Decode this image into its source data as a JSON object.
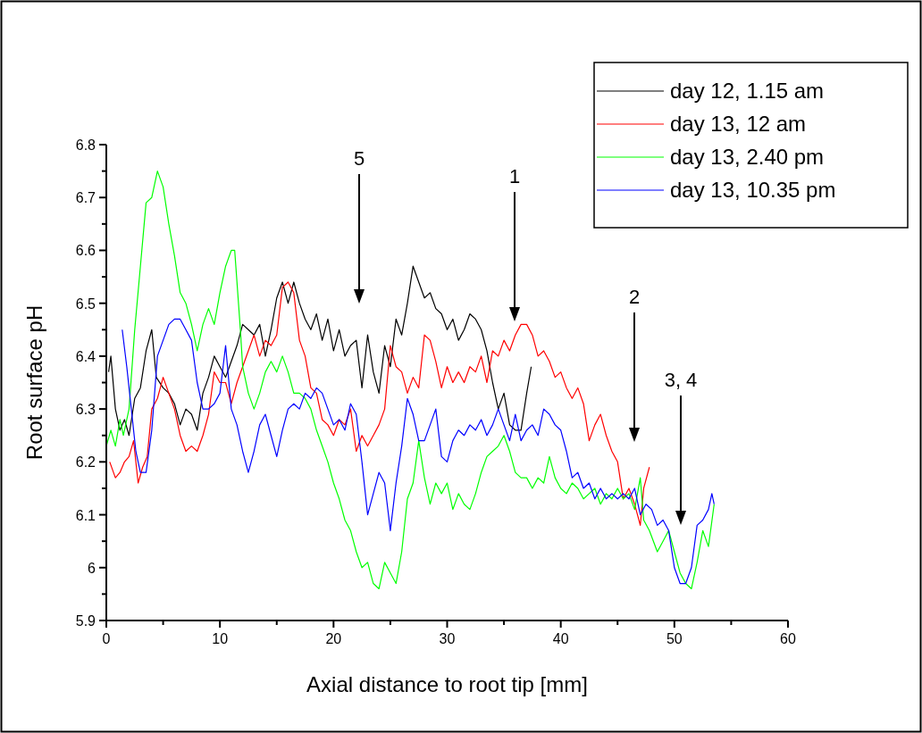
{
  "chart_data": {
    "type": "line",
    "xlabel": "Axial distance to root tip [mm]",
    "ylabel": "Root surface pH",
    "xlim": [
      0,
      60
    ],
    "ylim": [
      5.9,
      6.8
    ],
    "xticks": [
      0,
      10,
      20,
      30,
      40,
      50,
      60
    ],
    "yticks": [
      5.9,
      6.0,
      6.1,
      6.2,
      6.3,
      6.4,
      6.5,
      6.6,
      6.7,
      6.8
    ],
    "legend": "top right",
    "grid": false,
    "marker": "none",
    "line_style": "solid",
    "annotations": [
      "5",
      "1",
      "2",
      "3, 4"
    ],
    "series": [
      {
        "name": "day 12, 1.15 am",
        "color": "#000000",
        "x": [
          0.2,
          0.4,
          0.8,
          1.2,
          1.6,
          2.0,
          2.5,
          3.0,
          3.5,
          4.0,
          4.4,
          5.0,
          5.5,
          6.0,
          6.5,
          7.0,
          7.5,
          8.0,
          8.5,
          9.0,
          9.5,
          10.0,
          10.5,
          11.0,
          11.5,
          12.0,
          12.5,
          13.0,
          13.5,
          14.0,
          14.5,
          15.0,
          15.5,
          16.0,
          16.5,
          17.0,
          17.5,
          18.0,
          18.5,
          19.0,
          19.5,
          20.0,
          20.5,
          21.0,
          21.5,
          22.0,
          22.5,
          23.0,
          23.5,
          24.0,
          24.5,
          25.0,
          25.5,
          26.0,
          26.5,
          27.0,
          27.5,
          28.0,
          28.5,
          29.0,
          29.5,
          30.0,
          30.5,
          31.0,
          31.5,
          32.0,
          32.5,
          33.0,
          33.5,
          34.0,
          34.5,
          35.0,
          35.5,
          36.0,
          36.5,
          37.0,
          37.4
        ],
        "values": [
          6.37,
          6.4,
          6.3,
          6.26,
          6.28,
          6.25,
          6.32,
          6.34,
          6.41,
          6.45,
          6.36,
          6.34,
          6.33,
          6.31,
          6.27,
          6.3,
          6.29,
          6.26,
          6.33,
          6.36,
          6.4,
          6.38,
          6.36,
          6.39,
          6.42,
          6.46,
          6.45,
          6.44,
          6.46,
          6.4,
          6.45,
          6.51,
          6.54,
          6.5,
          6.54,
          6.5,
          6.47,
          6.45,
          6.48,
          6.43,
          6.47,
          6.41,
          6.45,
          6.4,
          6.42,
          6.43,
          6.34,
          6.44,
          6.37,
          6.33,
          6.42,
          6.38,
          6.47,
          6.44,
          6.5,
          6.57,
          6.54,
          6.51,
          6.52,
          6.49,
          6.48,
          6.45,
          6.47,
          6.43,
          6.45,
          6.48,
          6.47,
          6.45,
          6.41,
          6.35,
          6.3,
          6.33,
          6.27,
          6.26,
          6.26,
          6.33,
          6.38
        ]
      },
      {
        "name": "day 13, 12 am",
        "color": "#ff0000",
        "x": [
          0.3,
          0.8,
          1.2,
          1.6,
          2.0,
          2.4,
          2.8,
          3.2,
          3.6,
          4.0,
          4.5,
          5.0,
          5.5,
          6.0,
          6.5,
          7.0,
          7.5,
          8.0,
          8.5,
          9.0,
          9.5,
          10.0,
          10.5,
          11.0,
          11.5,
          12.0,
          12.5,
          13.0,
          13.5,
          14.0,
          14.5,
          15.0,
          15.5,
          16.0,
          16.5,
          17.0,
          17.5,
          18.0,
          18.5,
          19.0,
          19.5,
          20.0,
          20.5,
          21.0,
          21.5,
          22.0,
          22.5,
          23.0,
          23.5,
          24.0,
          24.5,
          25.0,
          25.5,
          26.0,
          26.5,
          27.0,
          27.5,
          28.0,
          28.5,
          29.0,
          29.5,
          30.0,
          30.5,
          31.0,
          31.5,
          32.0,
          32.5,
          33.0,
          33.5,
          34.0,
          34.5,
          35.0,
          35.5,
          36.0,
          36.5,
          37.0,
          37.5,
          38.0,
          38.5,
          39.0,
          39.5,
          40.0,
          40.5,
          41.0,
          41.5,
          42.0,
          42.5,
          43.0,
          43.5,
          44.0,
          44.5,
          45.0,
          45.5,
          46.0,
          46.5,
          47.0,
          47.3,
          47.8
        ],
        "values": [
          6.2,
          6.17,
          6.18,
          6.2,
          6.21,
          6.24,
          6.16,
          6.19,
          6.21,
          6.3,
          6.32,
          6.36,
          6.33,
          6.3,
          6.25,
          6.22,
          6.23,
          6.22,
          6.25,
          6.29,
          6.37,
          6.35,
          6.35,
          6.31,
          6.35,
          6.38,
          6.41,
          6.44,
          6.4,
          6.43,
          6.42,
          6.44,
          6.53,
          6.54,
          6.52,
          6.43,
          6.4,
          6.34,
          6.33,
          6.28,
          6.27,
          6.25,
          6.28,
          6.27,
          6.3,
          6.22,
          6.25,
          6.23,
          6.25,
          6.27,
          6.3,
          6.42,
          6.38,
          6.37,
          6.33,
          6.36,
          6.34,
          6.44,
          6.43,
          6.39,
          6.34,
          6.38,
          6.35,
          6.37,
          6.35,
          6.38,
          6.37,
          6.4,
          6.35,
          6.41,
          6.4,
          6.43,
          6.41,
          6.44,
          6.46,
          6.46,
          6.44,
          6.4,
          6.41,
          6.39,
          6.36,
          6.37,
          6.34,
          6.32,
          6.34,
          6.31,
          6.24,
          6.27,
          6.29,
          6.25,
          6.22,
          6.2,
          6.13,
          6.15,
          6.12,
          6.08,
          6.15,
          6.19
        ]
      },
      {
        "name": "day 13, 2.40 pm",
        "color": "#00ff00",
        "x": [
          0.0,
          0.4,
          0.8,
          1.2,
          1.5,
          2.0,
          2.5,
          3.0,
          3.5,
          4.0,
          4.5,
          5.0,
          5.5,
          6.0,
          6.5,
          7.0,
          7.5,
          8.0,
          8.5,
          9.0,
          9.5,
          10.0,
          10.5,
          11.0,
          11.3,
          11.8,
          12.0,
          12.5,
          13.0,
          13.5,
          14.0,
          14.5,
          15.0,
          15.5,
          16.0,
          16.5,
          17.0,
          17.5,
          18.0,
          18.5,
          19.0,
          19.5,
          20.0,
          20.5,
          21.0,
          21.5,
          22.0,
          22.5,
          23.0,
          23.5,
          24.0,
          24.5,
          25.0,
          25.5,
          26.0,
          26.5,
          27.0,
          27.5,
          28.0,
          28.5,
          29.0,
          29.5,
          30.0,
          30.5,
          31.0,
          31.5,
          32.0,
          32.5,
          33.0,
          33.5,
          34.0,
          34.5,
          35.0,
          35.5,
          36.0,
          36.5,
          37.0,
          37.5,
          38.0,
          38.5,
          39.0,
          39.5,
          40.0,
          40.5,
          41.0,
          41.5,
          42.0,
          42.5,
          43.0,
          43.5,
          44.0,
          44.5,
          45.0,
          45.5,
          46.0,
          46.5,
          47.0,
          47.3,
          47.8,
          48.5,
          49.0,
          49.5,
          50.0,
          50.5,
          51.0,
          51.5,
          52.0,
          52.5,
          53.0,
          53.5
        ],
        "values": [
          6.23,
          6.26,
          6.23,
          6.28,
          6.25,
          6.3,
          6.45,
          6.57,
          6.69,
          6.7,
          6.75,
          6.72,
          6.65,
          6.59,
          6.52,
          6.5,
          6.46,
          6.41,
          6.46,
          6.49,
          6.46,
          6.52,
          6.57,
          6.6,
          6.6,
          6.45,
          6.38,
          6.33,
          6.3,
          6.33,
          6.37,
          6.39,
          6.37,
          6.4,
          6.37,
          6.33,
          6.33,
          6.32,
          6.3,
          6.26,
          6.23,
          6.2,
          6.16,
          6.13,
          6.09,
          6.07,
          6.03,
          6.0,
          6.01,
          5.97,
          5.96,
          6.01,
          5.99,
          5.97,
          6.03,
          6.13,
          6.16,
          6.24,
          6.17,
          6.12,
          6.16,
          6.14,
          6.16,
          6.11,
          6.14,
          6.12,
          6.11,
          6.14,
          6.18,
          6.21,
          6.22,
          6.23,
          6.25,
          6.22,
          6.18,
          6.17,
          6.17,
          6.15,
          6.17,
          6.16,
          6.21,
          6.17,
          6.15,
          6.14,
          6.16,
          6.15,
          6.13,
          6.14,
          6.15,
          6.12,
          6.14,
          6.13,
          6.15,
          6.13,
          6.14,
          6.11,
          6.17,
          6.09,
          6.07,
          6.03,
          6.05,
          6.07,
          6.03,
          5.99,
          5.97,
          5.96,
          6.01,
          6.07,
          6.04,
          6.12
        ]
      },
      {
        "name": "day 13, 10.35 pm",
        "color": "#0000ff",
        "x": [
          1.4,
          1.8,
          2.2,
          2.6,
          3.0,
          3.5,
          4.0,
          4.5,
          5.0,
          5.5,
          6.0,
          6.5,
          7.0,
          7.5,
          8.0,
          8.5,
          9.0,
          9.5,
          10.0,
          10.5,
          11.0,
          11.5,
          12.0,
          12.5,
          13.0,
          13.5,
          14.0,
          14.5,
          15.0,
          15.5,
          16.0,
          16.5,
          17.0,
          17.5,
          18.0,
          18.5,
          19.0,
          19.5,
          20.0,
          20.5,
          21.0,
          21.5,
          22.0,
          22.5,
          23.0,
          23.5,
          24.0,
          24.5,
          25.0,
          25.5,
          26.0,
          26.5,
          27.0,
          27.5,
          28.0,
          28.5,
          29.0,
          29.5,
          30.0,
          30.5,
          31.0,
          31.5,
          32.0,
          32.5,
          33.0,
          33.5,
          34.0,
          34.5,
          35.0,
          35.5,
          36.0,
          36.5,
          37.0,
          37.5,
          38.0,
          38.5,
          39.0,
          39.5,
          40.0,
          40.5,
          41.0,
          41.5,
          42.0,
          42.5,
          43.0,
          43.5,
          44.0,
          44.5,
          45.0,
          45.5,
          46.0,
          46.5,
          47.0,
          47.5,
          48.0,
          48.5,
          49.0,
          49.5,
          50.0,
          50.5,
          51.0,
          51.5,
          52.0,
          52.5,
          53.0,
          53.3,
          53.5
        ],
        "values": [
          6.45,
          6.38,
          6.3,
          6.22,
          6.18,
          6.18,
          6.26,
          6.4,
          6.43,
          6.46,
          6.47,
          6.47,
          6.45,
          6.43,
          6.35,
          6.3,
          6.3,
          6.31,
          6.33,
          6.42,
          6.3,
          6.27,
          6.22,
          6.18,
          6.22,
          6.27,
          6.29,
          6.25,
          6.21,
          6.26,
          6.3,
          6.31,
          6.3,
          6.33,
          6.32,
          6.34,
          6.33,
          6.3,
          6.27,
          6.28,
          6.26,
          6.31,
          6.29,
          6.2,
          6.1,
          6.14,
          6.18,
          6.16,
          6.07,
          6.16,
          6.23,
          6.32,
          6.29,
          6.24,
          6.24,
          6.27,
          6.3,
          6.21,
          6.2,
          6.24,
          6.26,
          6.25,
          6.27,
          6.26,
          6.28,
          6.25,
          6.27,
          6.3,
          6.27,
          6.24,
          6.29,
          6.24,
          6.26,
          6.27,
          6.25,
          6.3,
          6.29,
          6.27,
          6.26,
          6.22,
          6.17,
          6.18,
          6.15,
          6.16,
          6.13,
          6.15,
          6.13,
          6.14,
          6.13,
          6.14,
          6.13,
          6.15,
          6.1,
          6.12,
          6.11,
          6.08,
          6.09,
          6.07,
          6.0,
          5.97,
          5.97,
          6.0,
          6.08,
          6.09,
          6.11,
          6.14,
          6.12
        ]
      }
    ]
  }
}
